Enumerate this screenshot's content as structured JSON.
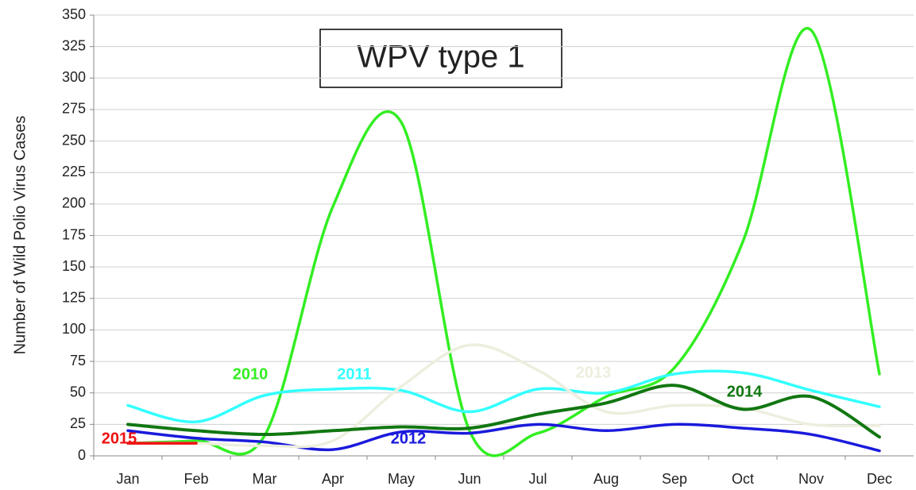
{
  "chart_data": {
    "type": "line",
    "title": "WPV type 1",
    "y_label": "Number of Wild Polio Virus Cases",
    "categories": [
      "Jan",
      "Feb",
      "Mar",
      "Apr",
      "May",
      "Jun",
      "Jul",
      "Aug",
      "Sep",
      "Oct",
      "Nov",
      "Dec"
    ],
    "series": [
      {
        "name": "2010",
        "color": "#33ee22",
        "values": [
          10,
          12,
          16,
          198,
          265,
          20,
          18,
          47,
          70,
          170,
          338,
          65
        ]
      },
      {
        "name": "2011",
        "color": "#33ffff",
        "values": [
          40,
          27,
          48,
          53,
          52,
          35,
          53,
          50,
          65,
          66,
          52,
          39
        ]
      },
      {
        "name": "2012",
        "color": "#1a1adc",
        "values": [
          20,
          14,
          11,
          5,
          19,
          18,
          25,
          20,
          25,
          22,
          17,
          4
        ]
      },
      {
        "name": "2013",
        "color": "#eeeedf",
        "values": [
          10,
          10,
          8,
          12,
          55,
          88,
          68,
          35,
          40,
          38,
          25,
          24
        ]
      },
      {
        "name": "2014",
        "color": "#117711",
        "values": [
          25,
          20,
          17,
          20,
          23,
          22,
          33,
          42,
          56,
          37,
          47,
          15
        ]
      },
      {
        "name": "2015",
        "color": "#ee1111",
        "values": [
          10,
          10,
          null,
          null,
          null,
          null,
          null,
          null,
          null,
          null,
          null,
          null
        ]
      }
    ],
    "ylim": [
      0,
      350
    ],
    "yticks": [
      0,
      25,
      50,
      75,
      100,
      125,
      150,
      175,
      200,
      225,
      250,
      275,
      300,
      325,
      350
    ],
    "grid": true
  }
}
